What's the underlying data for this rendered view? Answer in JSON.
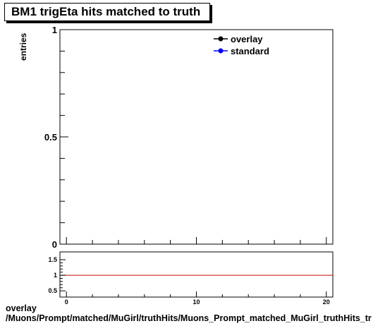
{
  "title": "BM1 trigEta hits matched to truth",
  "footer": {
    "line1": "overlay",
    "line2": "/Muons/Prompt/matched/MuGirl/truthHits/Muons_Prompt_matched_MuGirl_truthHits_tr"
  },
  "chart_data": [
    {
      "type": "line",
      "title": "BM1 trigEta hits matched to truth",
      "xlabel": "",
      "ylabel": "entries",
      "xlim": [
        -0.5,
        20.5
      ],
      "ylim": [
        0,
        1
      ],
      "y_ticks": [
        "0",
        "0.5",
        "1"
      ],
      "grid": false,
      "legend_position": "top-right",
      "series": [
        {
          "name": "overlay",
          "color": "#000000",
          "marker": "circle",
          "x": [],
          "y": []
        },
        {
          "name": "standard",
          "color": "#0000ff",
          "marker": "circle",
          "x": [],
          "y": []
        }
      ]
    },
    {
      "type": "line",
      "title": "",
      "xlabel": "",
      "ylabel": "",
      "xlim": [
        -0.5,
        20.5
      ],
      "ylim": [
        0.3,
        1.75
      ],
      "x_ticks": [
        "0",
        "10",
        "20"
      ],
      "y_ticks": [
        "0.5",
        "1",
        "1.5"
      ],
      "reference_line": {
        "y": 1,
        "color": "#cc0000"
      },
      "series": []
    }
  ]
}
